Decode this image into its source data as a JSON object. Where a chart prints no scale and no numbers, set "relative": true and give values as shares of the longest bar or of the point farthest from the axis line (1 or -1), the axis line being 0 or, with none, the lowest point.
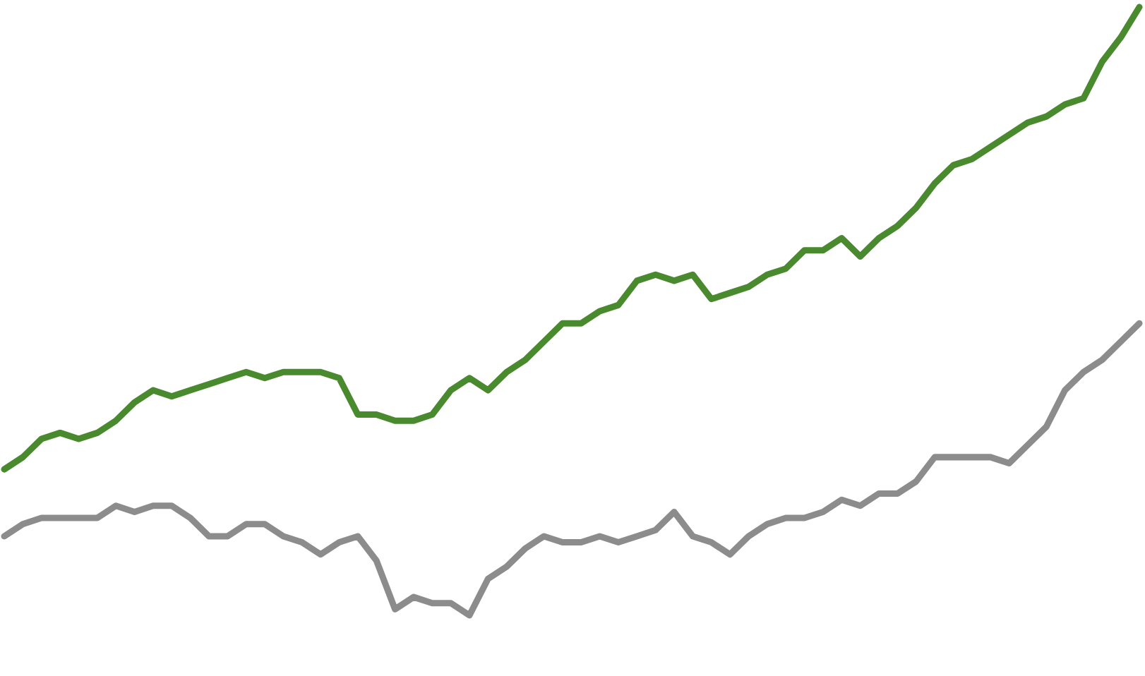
{
  "chart_data": {
    "type": "line",
    "relative": true,
    "categories": [
      null,
      null,
      null,
      null,
      null,
      null,
      null,
      null,
      null,
      null,
      null,
      null,
      null,
      null,
      null,
      null,
      null,
      null,
      null,
      null,
      null,
      null,
      null,
      null,
      null,
      null,
      null,
      null,
      null,
      null,
      null,
      null,
      null,
      null,
      null,
      null,
      null,
      null,
      null,
      null,
      null,
      null,
      null,
      null,
      null,
      null,
      null,
      null,
      null,
      null,
      null,
      null,
      null,
      null,
      null,
      null,
      null,
      null,
      null,
      null,
      null,
      null
    ],
    "series": [
      {
        "color": "#4a8a2e",
        "values": [
          0.24,
          0.26,
          0.29,
          0.3,
          0.29,
          0.3,
          0.32,
          0.35,
          0.37,
          0.36,
          0.37,
          0.38,
          0.39,
          0.4,
          0.39,
          0.4,
          0.4,
          0.4,
          0.39,
          0.33,
          0.33,
          0.32,
          0.32,
          0.33,
          0.37,
          0.39,
          0.37,
          0.4,
          0.42,
          0.45,
          0.48,
          0.48,
          0.5,
          0.51,
          0.55,
          0.56,
          0.55,
          0.56,
          0.52,
          0.53,
          0.54,
          0.56,
          0.57,
          0.6,
          0.6,
          0.62,
          0.59,
          0.62,
          0.64,
          0.67,
          0.71,
          0.74,
          0.75,
          0.77,
          0.79,
          0.81,
          0.82,
          0.84,
          0.85,
          0.91,
          0.95,
          1.0
        ]
      },
      {
        "color": "#8c8c8c",
        "values": [
          0.13,
          0.15,
          0.16,
          0.16,
          0.16,
          0.16,
          0.18,
          0.17,
          0.18,
          0.18,
          0.16,
          0.13,
          0.13,
          0.15,
          0.15,
          0.13,
          0.12,
          0.1,
          0.12,
          0.13,
          0.09,
          0.01,
          0.03,
          0.02,
          0.02,
          0.0,
          0.06,
          0.08,
          0.11,
          0.13,
          0.12,
          0.12,
          0.13,
          0.12,
          0.13,
          0.14,
          0.17,
          0.13,
          0.12,
          0.1,
          0.13,
          0.15,
          0.16,
          0.16,
          0.17,
          0.19,
          0.18,
          0.2,
          0.2,
          0.22,
          0.26,
          0.26,
          0.26,
          0.26,
          0.25,
          0.28,
          0.31,
          0.37,
          0.4,
          0.42,
          0.45,
          0.48
        ]
      }
    ]
  }
}
